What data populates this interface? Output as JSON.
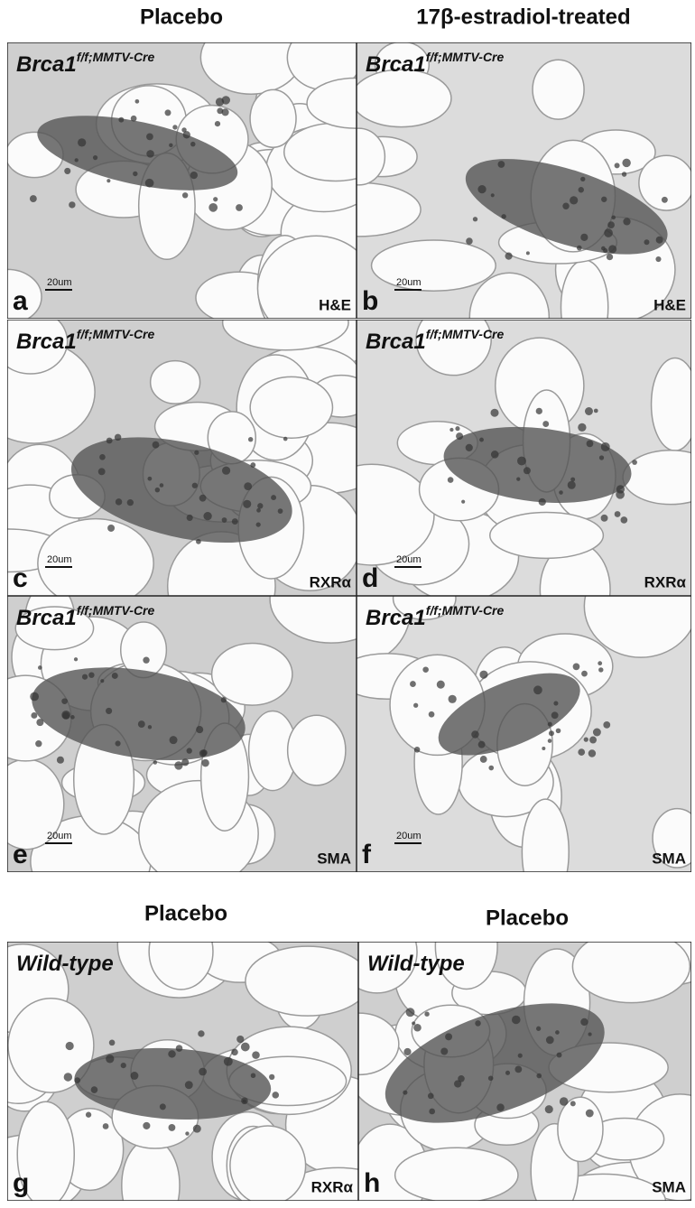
{
  "columns": [
    "Placebo",
    "17β-estradiol-treated"
  ],
  "panels": [
    {
      "genotype": "Brca1",
      "genotype_sup": "f/f;MMTV-Cre",
      "letter": "a",
      "stain": "H&E",
      "scale": "20um"
    },
    {
      "genotype": "Brca1",
      "genotype_sup": "f/f;MMTV-Cre",
      "letter": "b",
      "stain": "H&E",
      "scale": "20um"
    },
    {
      "genotype": "Brca1",
      "genotype_sup": "f/f;MMTV-Cre",
      "letter": "c",
      "stain": "RXRα",
      "scale": "20um"
    },
    {
      "genotype": "Brca1",
      "genotype_sup": "f/f;MMTV-Cre",
      "letter": "d",
      "stain": "RXRα",
      "scale": "20um"
    },
    {
      "genotype": "Brca1",
      "genotype_sup": "f/f;MMTV-Cre",
      "letter": "e",
      "stain": "SMA",
      "scale": "20um"
    },
    {
      "genotype": "Brca1",
      "genotype_sup": "f/f;MMTV-Cre",
      "letter": "f",
      "stain": "SMA",
      "scale": "20um"
    }
  ],
  "bottom_columns": [
    "Placebo",
    "Placebo"
  ],
  "bottom_panels": [
    {
      "genotype": "Wild-type",
      "letter": "g",
      "stain": "RXRα"
    },
    {
      "genotype": "Wild-type",
      "letter": "h",
      "stain": "SMA"
    }
  ]
}
